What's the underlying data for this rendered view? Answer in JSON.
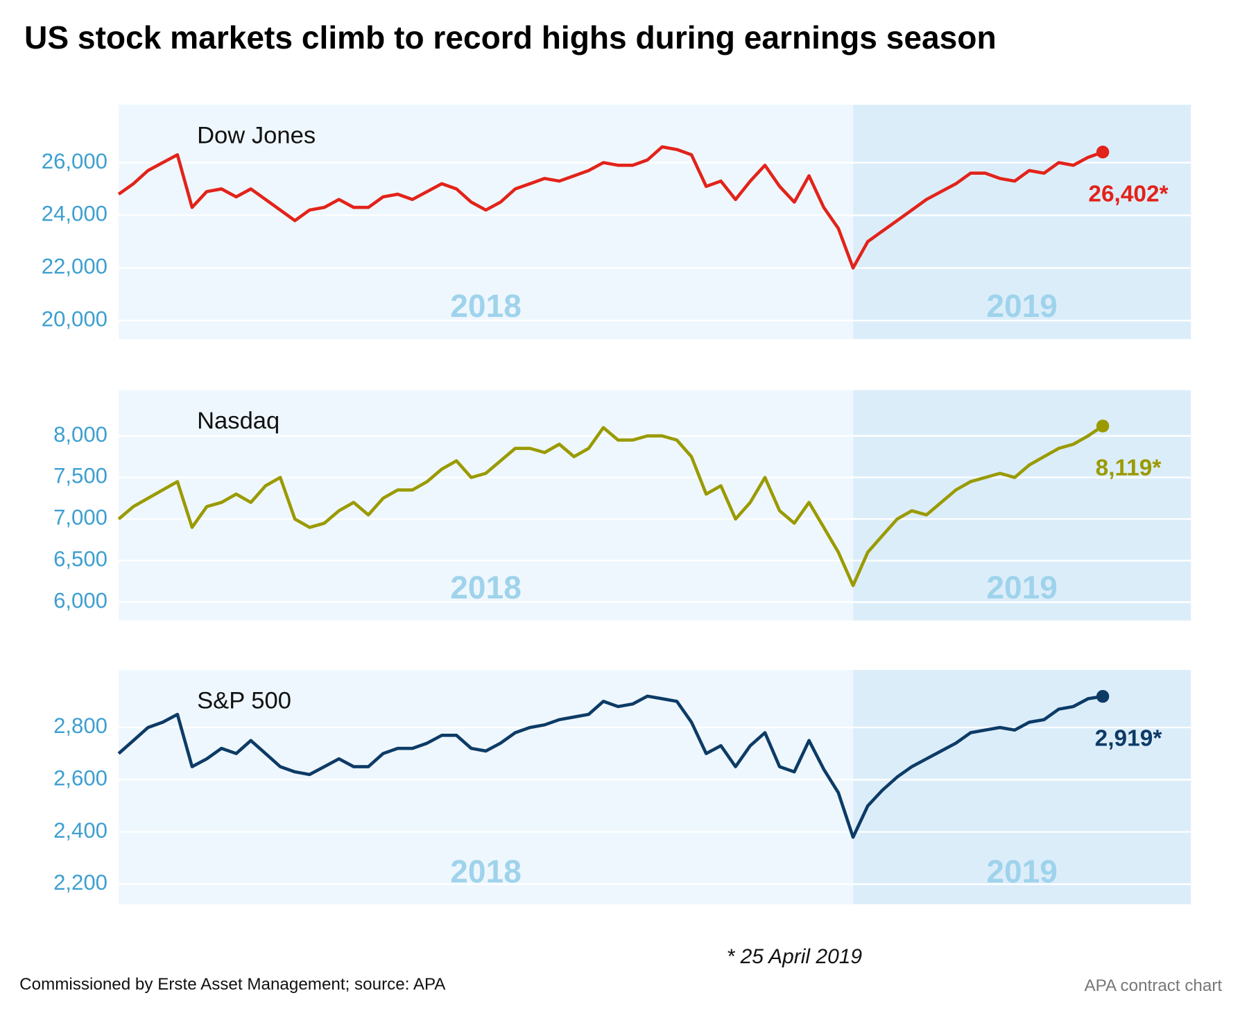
{
  "title": "US stock markets climb to record highs during earnings season",
  "note": "* 25 April 2019",
  "source": "Commissioned by Erste Asset Management; source: APA",
  "credit": "APA contract chart",
  "chart_data": [
    {
      "type": "line",
      "xlim": [
        2018,
        2019.46
      ],
      "ylim": [
        19300,
        28200
      ],
      "yticks": [
        {
          "value": 20000,
          "label": "20,000"
        },
        {
          "value": 22000,
          "label": "22,000"
        },
        {
          "value": 24000,
          "label": "24,000"
        },
        {
          "value": 26000,
          "label": "26,000"
        }
      ],
      "grid": true,
      "periods": [
        {
          "label": "2018",
          "start": 2018,
          "end": 2019
        },
        {
          "label": "2019",
          "start": 2019,
          "end": 2019.46
        }
      ],
      "x": [
        2018.0,
        2018.02,
        2018.04,
        2018.06,
        2018.08,
        2018.1,
        2018.12,
        2018.14,
        2018.16,
        2018.18,
        2018.2,
        2018.22,
        2018.24,
        2018.26,
        2018.28,
        2018.3,
        2018.32,
        2018.34,
        2018.36,
        2018.38,
        2018.4,
        2018.42,
        2018.44,
        2018.46,
        2018.48,
        2018.5,
        2018.52,
        2018.54,
        2018.56,
        2018.58,
        2018.6,
        2018.62,
        2018.64,
        2018.66,
        2018.68,
        2018.7,
        2018.72,
        2018.74,
        2018.76,
        2018.78,
        2018.8,
        2018.82,
        2018.84,
        2018.86,
        2018.88,
        2018.9,
        2018.92,
        2018.94,
        2018.96,
        2018.98,
        2019.0,
        2019.02,
        2019.04,
        2019.06,
        2019.08,
        2019.1,
        2019.12,
        2019.14,
        2019.16,
        2019.18,
        2019.2,
        2019.22,
        2019.24,
        2019.26,
        2019.28,
        2019.3,
        2019.32,
        2019.34
      ],
      "series": [
        {
          "name": "Dow Jones",
          "color": "#e2231a",
          "values": [
            24800,
            25200,
            25700,
            26000,
            26300,
            24300,
            24900,
            25000,
            24700,
            25000,
            24600,
            24200,
            23800,
            24200,
            24300,
            24600,
            24300,
            24300,
            24700,
            24800,
            24600,
            24900,
            25200,
            25000,
            24500,
            24200,
            24500,
            25000,
            25200,
            25400,
            25300,
            25500,
            25700,
            26000,
            25900,
            25900,
            26100,
            26600,
            26500,
            26300,
            25100,
            25300,
            24600,
            25300,
            25900,
            25100,
            24500,
            25500,
            24300,
            23500,
            22000,
            23000,
            23400,
            23800,
            24200,
            24600,
            24900,
            25200,
            25600,
            25600,
            25400,
            25300,
            25700,
            25600,
            26000,
            25900,
            26200,
            26402
          ],
          "value_labels": [
            null,
            null,
            null,
            null,
            null,
            null,
            null,
            null,
            null,
            null,
            null,
            null,
            null,
            null,
            null,
            null,
            null,
            null,
            null,
            null,
            null,
            null,
            null,
            null,
            null,
            null,
            null,
            null,
            null,
            null,
            null,
            null,
            null,
            null,
            null,
            null,
            null,
            null,
            null,
            null,
            null,
            null,
            null,
            null,
            null,
            null,
            null,
            null,
            null,
            null,
            null,
            null,
            null,
            null,
            null,
            null,
            null,
            null,
            null,
            null,
            null,
            null,
            null,
            null,
            null,
            null,
            null,
            "26,402*"
          ]
        }
      ]
    },
    {
      "type": "line",
      "xlim": [
        2018,
        2019.46
      ],
      "ylim": [
        5780,
        8550
      ],
      "yticks": [
        {
          "value": 6000,
          "label": "6,000"
        },
        {
          "value": 6500,
          "label": "6,500"
        },
        {
          "value": 7000,
          "label": "7,000"
        },
        {
          "value": 7500,
          "label": "7,500"
        },
        {
          "value": 8000,
          "label": "8,000"
        }
      ],
      "grid": true,
      "periods": [
        {
          "label": "2018",
          "start": 2018,
          "end": 2019
        },
        {
          "label": "2019",
          "start": 2019,
          "end": 2019.46
        }
      ],
      "x": [
        2018.0,
        2018.02,
        2018.04,
        2018.06,
        2018.08,
        2018.1,
        2018.12,
        2018.14,
        2018.16,
        2018.18,
        2018.2,
        2018.22,
        2018.24,
        2018.26,
        2018.28,
        2018.3,
        2018.32,
        2018.34,
        2018.36,
        2018.38,
        2018.4,
        2018.42,
        2018.44,
        2018.46,
        2018.48,
        2018.5,
        2018.52,
        2018.54,
        2018.56,
        2018.58,
        2018.6,
        2018.62,
        2018.64,
        2018.66,
        2018.68,
        2018.7,
        2018.72,
        2018.74,
        2018.76,
        2018.78,
        2018.8,
        2018.82,
        2018.84,
        2018.86,
        2018.88,
        2018.9,
        2018.92,
        2018.94,
        2018.96,
        2018.98,
        2019.0,
        2019.02,
        2019.04,
        2019.06,
        2019.08,
        2019.1,
        2019.12,
        2019.14,
        2019.16,
        2019.18,
        2019.2,
        2019.22,
        2019.24,
        2019.26,
        2019.28,
        2019.3,
        2019.32,
        2019.34
      ],
      "series": [
        {
          "name": "Nasdaq",
          "color": "#9a9a00",
          "values": [
            7000,
            7150,
            7250,
            7350,
            7450,
            6900,
            7150,
            7200,
            7300,
            7200,
            7400,
            7500,
            7000,
            6900,
            6950,
            7100,
            7200,
            7050,
            7250,
            7350,
            7350,
            7450,
            7600,
            7700,
            7500,
            7550,
            7700,
            7850,
            7850,
            7800,
            7900,
            7750,
            7850,
            8100,
            7950,
            7950,
            8000,
            8000,
            7950,
            7750,
            7300,
            7400,
            7000,
            7200,
            7500,
            7100,
            6950,
            7200,
            6900,
            6600,
            6200,
            6600,
            6800,
            7000,
            7100,
            7050,
            7200,
            7350,
            7450,
            7500,
            7550,
            7500,
            7650,
            7750,
            7850,
            7900,
            8000,
            8119
          ],
          "value_labels": [
            null,
            null,
            null,
            null,
            null,
            null,
            null,
            null,
            null,
            null,
            null,
            null,
            null,
            null,
            null,
            null,
            null,
            null,
            null,
            null,
            null,
            null,
            null,
            null,
            null,
            null,
            null,
            null,
            null,
            null,
            null,
            null,
            null,
            null,
            null,
            null,
            null,
            null,
            null,
            null,
            null,
            null,
            null,
            null,
            null,
            null,
            null,
            null,
            null,
            null,
            null,
            null,
            null,
            null,
            null,
            null,
            null,
            null,
            null,
            null,
            null,
            null,
            null,
            null,
            null,
            null,
            null,
            "8,119*"
          ]
        }
      ]
    },
    {
      "type": "line",
      "xlim": [
        2018,
        2019.46
      ],
      "ylim": [
        2123,
        3020
      ],
      "yticks": [
        {
          "value": 2200,
          "label": "2,200"
        },
        {
          "value": 2400,
          "label": "2,400"
        },
        {
          "value": 2600,
          "label": "2,600"
        },
        {
          "value": 2800,
          "label": "2,800"
        }
      ],
      "grid": true,
      "periods": [
        {
          "label": "2018",
          "start": 2018,
          "end": 2019
        },
        {
          "label": "2019",
          "start": 2019,
          "end": 2019.46
        }
      ],
      "x": [
        2018.0,
        2018.02,
        2018.04,
        2018.06,
        2018.08,
        2018.1,
        2018.12,
        2018.14,
        2018.16,
        2018.18,
        2018.2,
        2018.22,
        2018.24,
        2018.26,
        2018.28,
        2018.3,
        2018.32,
        2018.34,
        2018.36,
        2018.38,
        2018.4,
        2018.42,
        2018.44,
        2018.46,
        2018.48,
        2018.5,
        2018.52,
        2018.54,
        2018.56,
        2018.58,
        2018.6,
        2018.62,
        2018.64,
        2018.66,
        2018.68,
        2018.7,
        2018.72,
        2018.74,
        2018.76,
        2018.78,
        2018.8,
        2018.82,
        2018.84,
        2018.86,
        2018.88,
        2018.9,
        2018.92,
        2018.94,
        2018.96,
        2018.98,
        2019.0,
        2019.02,
        2019.04,
        2019.06,
        2019.08,
        2019.1,
        2019.12,
        2019.14,
        2019.16,
        2019.18,
        2019.2,
        2019.22,
        2019.24,
        2019.26,
        2019.28,
        2019.3,
        2019.32,
        2019.34
      ],
      "series": [
        {
          "name": "S&P 500",
          "color": "#0d3b66",
          "values": [
            2700,
            2750,
            2800,
            2820,
            2850,
            2650,
            2680,
            2720,
            2700,
            2750,
            2700,
            2650,
            2630,
            2620,
            2650,
            2680,
            2650,
            2650,
            2700,
            2720,
            2720,
            2740,
            2770,
            2770,
            2720,
            2710,
            2740,
            2780,
            2800,
            2810,
            2830,
            2840,
            2850,
            2900,
            2880,
            2890,
            2920,
            2910,
            2900,
            2820,
            2700,
            2730,
            2650,
            2730,
            2780,
            2650,
            2630,
            2750,
            2640,
            2550,
            2380,
            2500,
            2560,
            2610,
            2650,
            2680,
            2710,
            2740,
            2780,
            2790,
            2800,
            2790,
            2820,
            2830,
            2870,
            2880,
            2910,
            2919
          ],
          "value_labels": [
            null,
            null,
            null,
            null,
            null,
            null,
            null,
            null,
            null,
            null,
            null,
            null,
            null,
            null,
            null,
            null,
            null,
            null,
            null,
            null,
            null,
            null,
            null,
            null,
            null,
            null,
            null,
            null,
            null,
            null,
            null,
            null,
            null,
            null,
            null,
            null,
            null,
            null,
            null,
            null,
            null,
            null,
            null,
            null,
            null,
            null,
            null,
            null,
            null,
            null,
            null,
            null,
            null,
            null,
            null,
            null,
            null,
            null,
            null,
            null,
            null,
            null,
            null,
            null,
            null,
            null,
            null,
            "2,919*"
          ]
        }
      ]
    }
  ]
}
